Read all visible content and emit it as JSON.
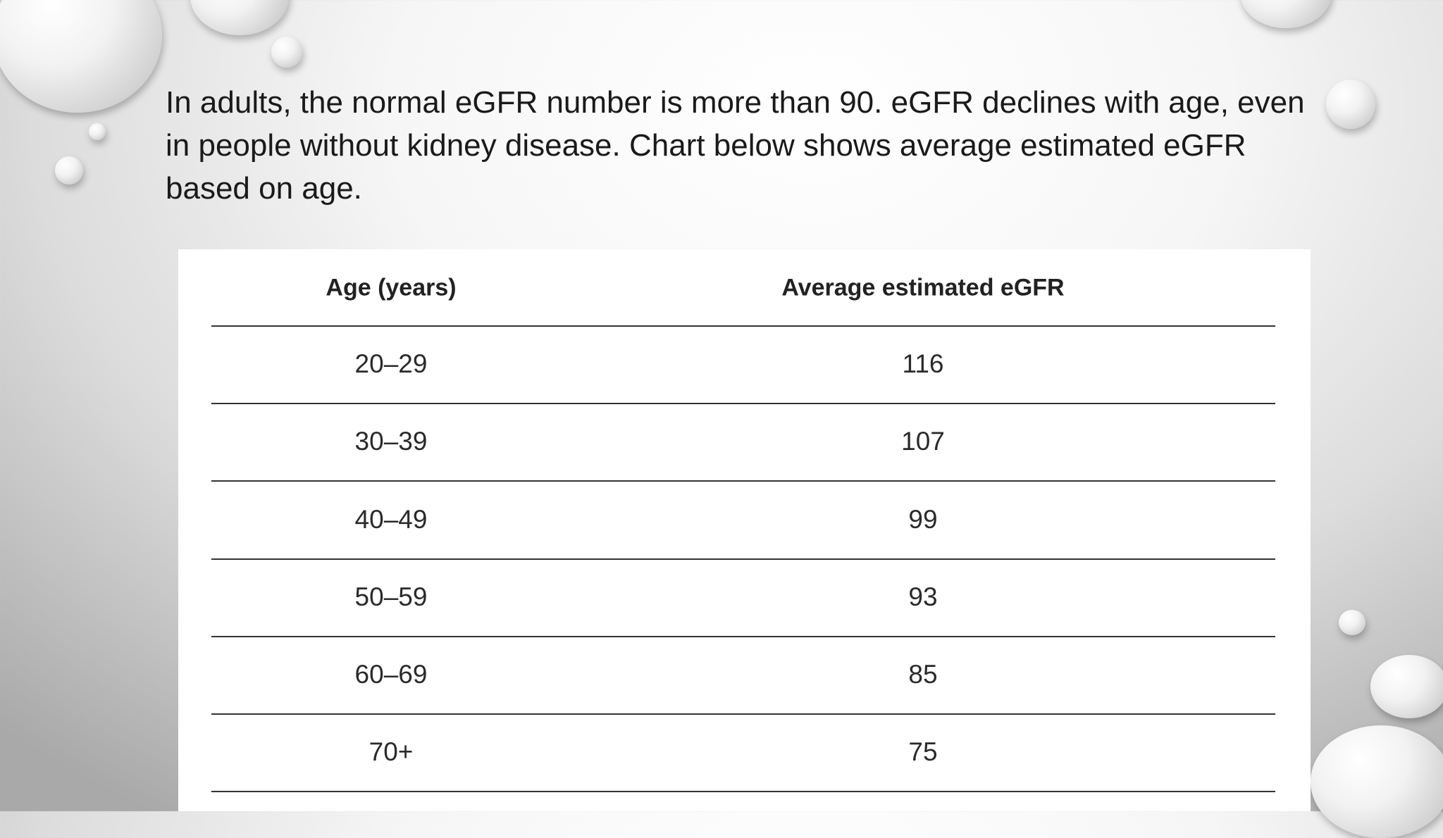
{
  "paragraph": "In adults, the normal eGFR number is more than 90. eGFR declines with age, even in people without kidney disease. Chart below shows average estimated eGFR based on age.",
  "table": {
    "headers": [
      "Age (years)",
      "Average estimated eGFR"
    ],
    "rows": [
      [
        "20–29",
        116
      ],
      [
        "30–39",
        107
      ],
      [
        "40–49",
        99
      ],
      [
        "50–59",
        93
      ],
      [
        "60–69",
        85
      ],
      [
        "70+",
        75
      ]
    ]
  }
}
